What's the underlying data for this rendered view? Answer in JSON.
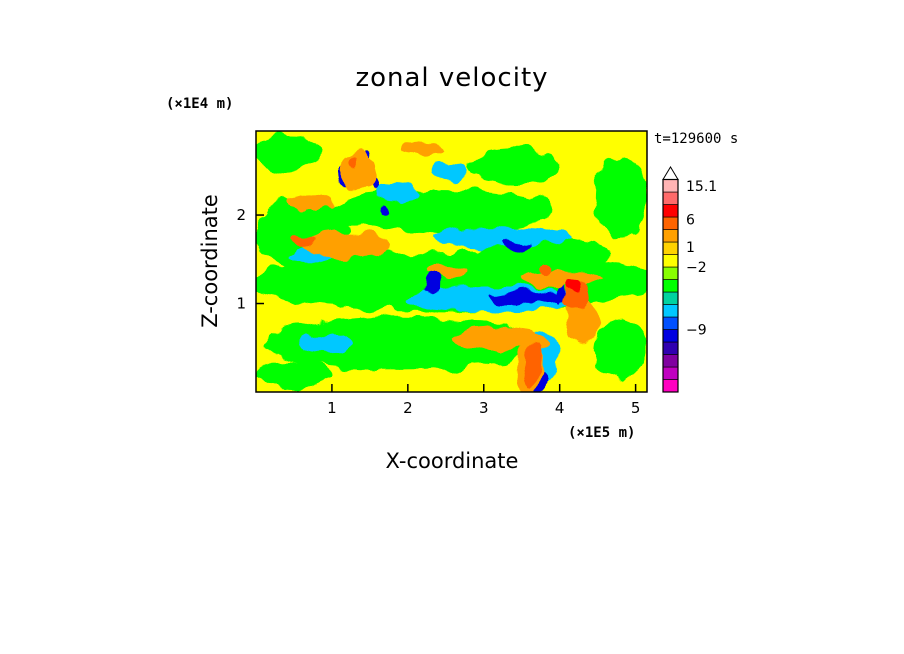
{
  "chart_data": {
    "type": "heatmap",
    "title": "zonal velocity",
    "xlabel": "X-coordinate",
    "ylabel": "Z-coordinate",
    "x_unit_label": "(×1E5 m)",
    "y_unit_label": "(×1E4 m)",
    "time_label": "t=129600 s",
    "xlim": [
      0,
      5.15
    ],
    "ylim": [
      0,
      2.95
    ],
    "x_ticks": [
      {
        "value": 1,
        "label": "1"
      },
      {
        "value": 2,
        "label": "2"
      },
      {
        "value": 3,
        "label": "3"
      },
      {
        "value": 4,
        "label": "4"
      },
      {
        "value": 5,
        "label": "5"
      }
    ],
    "y_ticks": [
      {
        "value": 1,
        "label": "1"
      },
      {
        "value": 2,
        "label": "2"
      }
    ],
    "background_color": "#ffff00",
    "colorbar": {
      "levels": [
        {
          "color": "#ff00c0"
        },
        {
          "color": "#c000c0"
        },
        {
          "color": "#8000a0"
        },
        {
          "color": "#3000b0"
        },
        {
          "color": "#0000e0"
        },
        {
          "color": "#0050ff"
        },
        {
          "color": "#00c8ff"
        },
        {
          "color": "#00d2a0"
        },
        {
          "color": "#00ff00"
        },
        {
          "color": "#88ff00"
        },
        {
          "color": "#ffff00"
        },
        {
          "color": "#ffd200"
        },
        {
          "color": "#ffa000"
        },
        {
          "color": "#ff6400"
        },
        {
          "color": "#ff0000"
        },
        {
          "color": "#ff6a6a"
        },
        {
          "color": "#ffb4b4"
        },
        {
          "color": "#ffffff"
        }
      ],
      "labels": [
        {
          "text": "15.1",
          "level": 16.5
        },
        {
          "text": "6",
          "level": 13.8
        },
        {
          "text": "1",
          "level": 11.6
        },
        {
          "text": "−2",
          "level": 10.0
        },
        {
          "text": "−9",
          "level": 5.0
        }
      ]
    },
    "features": [
      {
        "color": "#00ff00",
        "x": 2.6,
        "z": 1.25,
        "rx": 2.7,
        "rz": 0.35
      },
      {
        "color": "#00ff00",
        "x": 1.9,
        "z": 0.55,
        "rx": 1.8,
        "rz": 0.3
      },
      {
        "color": "#00ff00",
        "x": 2.4,
        "z": 2.05,
        "rx": 1.5,
        "rz": 0.25
      },
      {
        "color": "#00ff00",
        "x": 0.6,
        "z": 1.8,
        "rx": 0.6,
        "rz": 0.4
      },
      {
        "color": "#00ff00",
        "x": 0.4,
        "z": 2.7,
        "rx": 0.45,
        "rz": 0.2
      },
      {
        "color": "#00ff00",
        "x": 3.4,
        "z": 2.55,
        "rx": 0.6,
        "rz": 0.2
      },
      {
        "color": "#00ff00",
        "x": 4.8,
        "z": 2.2,
        "rx": 0.35,
        "rz": 0.45
      },
      {
        "color": "#00ff00",
        "x": 0.5,
        "z": 0.2,
        "rx": 0.5,
        "rz": 0.15
      },
      {
        "color": "#00ff00",
        "x": 4.8,
        "z": 0.5,
        "rx": 0.35,
        "rz": 0.35
      },
      {
        "color": "#00ff00",
        "x": 3.8,
        "z": 1.55,
        "rx": 0.9,
        "rz": 0.2
      },
      {
        "color": "#00c8ff",
        "x": 3.15,
        "z": 1.05,
        "rx": 1.15,
        "rz": 0.15
      },
      {
        "color": "#00c8ff",
        "x": 3.2,
        "z": 1.75,
        "rx": 0.9,
        "rz": 0.13
      },
      {
        "color": "#00c8ff",
        "x": 0.9,
        "z": 0.55,
        "rx": 0.35,
        "rz": 0.11
      },
      {
        "color": "#00c8ff",
        "x": 1.85,
        "z": 2.25,
        "rx": 0.3,
        "rz": 0.1
      },
      {
        "color": "#00c8ff",
        "x": 0.75,
        "z": 1.55,
        "rx": 0.3,
        "rz": 0.09
      },
      {
        "color": "#00c8ff",
        "x": 2.55,
        "z": 2.5,
        "rx": 0.25,
        "rz": 0.09
      },
      {
        "color": "#00c8ff",
        "x": 3.75,
        "z": 0.4,
        "rx": 0.25,
        "rz": 0.3
      },
      {
        "color": "#0000e0",
        "x": 3.65,
        "z": 1.07,
        "rx": 0.55,
        "rz": 0.07
      },
      {
        "color": "#0000e0",
        "x": 2.3,
        "z": 1.2,
        "rx": 0.1,
        "rz": 0.12
      },
      {
        "color": "#0000e0",
        "x": 1.15,
        "z": 2.45,
        "rx": 0.08,
        "rz": 0.1
      },
      {
        "color": "#0000e0",
        "x": 1.55,
        "z": 2.35,
        "rx": 0.07,
        "rz": 0.08
      },
      {
        "color": "#0000e0",
        "x": 1.7,
        "z": 2.05,
        "rx": 0.06,
        "rz": 0.06
      },
      {
        "color": "#0000e0",
        "x": 1.45,
        "z": 2.65,
        "rx": 0.06,
        "rz": 0.07
      },
      {
        "color": "#0000e0",
        "x": 3.75,
        "z": 0.12,
        "rx": 0.12,
        "rz": 0.12
      },
      {
        "color": "#0000e0",
        "x": 4.05,
        "z": 1.15,
        "rx": 0.05,
        "rz": 0.15
      },
      {
        "color": "#0000e0",
        "x": 3.45,
        "z": 1.65,
        "rx": 0.2,
        "rz": 0.06
      },
      {
        "color": "#ffa000",
        "x": 1.2,
        "z": 1.65,
        "rx": 0.6,
        "rz": 0.14
      },
      {
        "color": "#ffa000",
        "x": 4.0,
        "z": 1.28,
        "rx": 0.5,
        "rz": 0.1
      },
      {
        "color": "#ffa000",
        "x": 3.2,
        "z": 0.6,
        "rx": 0.6,
        "rz": 0.12
      },
      {
        "color": "#ffa000",
        "x": 1.35,
        "z": 2.5,
        "rx": 0.25,
        "rz": 0.2
      },
      {
        "color": "#ffa000",
        "x": 3.6,
        "z": 0.3,
        "rx": 0.2,
        "rz": 0.3
      },
      {
        "color": "#ffa000",
        "x": 4.3,
        "z": 0.8,
        "rx": 0.2,
        "rz": 0.25
      },
      {
        "color": "#ffa000",
        "x": 0.7,
        "z": 2.15,
        "rx": 0.3,
        "rz": 0.1
      },
      {
        "color": "#ffa000",
        "x": 2.5,
        "z": 1.35,
        "rx": 0.25,
        "rz": 0.08
      },
      {
        "color": "#ffa000",
        "x": 2.2,
        "z": 2.75,
        "rx": 0.3,
        "rz": 0.08
      },
      {
        "color": "#ff6400",
        "x": 3.65,
        "z": 0.35,
        "rx": 0.12,
        "rz": 0.25
      },
      {
        "color": "#ff6400",
        "x": 4.25,
        "z": 1.1,
        "rx": 0.15,
        "rz": 0.15
      },
      {
        "color": "#ff6400",
        "x": 0.6,
        "z": 1.7,
        "rx": 0.15,
        "rz": 0.06
      },
      {
        "color": "#ff6400",
        "x": 1.3,
        "z": 2.6,
        "rx": 0.07,
        "rz": 0.06
      },
      {
        "color": "#ff6400",
        "x": 3.8,
        "z": 1.4,
        "rx": 0.1,
        "rz": 0.06
      },
      {
        "color": "#ff0000",
        "x": 4.2,
        "z": 1.2,
        "rx": 0.08,
        "rz": 0.08
      }
    ]
  }
}
